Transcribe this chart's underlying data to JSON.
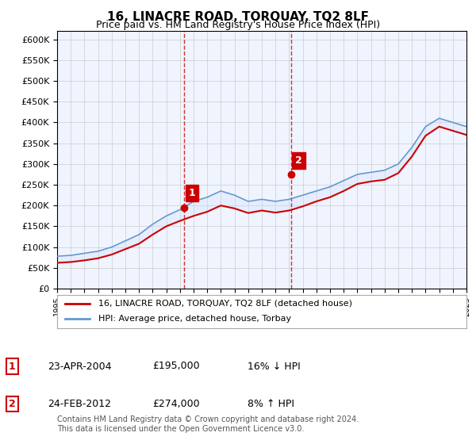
{
  "title": "16, LINACRE ROAD, TORQUAY, TQ2 8LF",
  "subtitle": "Price paid vs. HM Land Registry's House Price Index (HPI)",
  "ylabel_ticks": [
    "£0",
    "£50K",
    "£100K",
    "£150K",
    "£200K",
    "£250K",
    "£300K",
    "£350K",
    "£400K",
    "£450K",
    "£500K",
    "£550K",
    "£600K"
  ],
  "y_values": [
    0,
    50000,
    100000,
    150000,
    200000,
    250000,
    300000,
    350000,
    400000,
    450000,
    500000,
    550000,
    600000
  ],
  "line1_color": "#cc0000",
  "line2_color": "#6699cc",
  "fill_color": "#cce0ff",
  "vline_color": "#cc0000",
  "marker1_date": 2004.31,
  "marker1_value": 195000,
  "marker1_label": "1",
  "marker2_date": 2012.15,
  "marker2_value": 274000,
  "marker2_label": "2",
  "legend_line1": "16, LINACRE ROAD, TORQUAY, TQ2 8LF (detached house)",
  "legend_line2": "HPI: Average price, detached house, Torbay",
  "table_row1": [
    "1",
    "23-APR-2004",
    "£195,000",
    "16% ↓ HPI"
  ],
  "table_row2": [
    "2",
    "24-FEB-2012",
    "£274,000",
    "8% ↑ HPI"
  ],
  "footer": "Contains HM Land Registry data © Crown copyright and database right 2024.\nThis data is licensed under the Open Government Licence v3.0.",
  "background_color": "#ffffff",
  "plot_bg_color": "#f0f4ff",
  "grid_color": "#cccccc",
  "xmin": 1995,
  "xmax": 2025
}
